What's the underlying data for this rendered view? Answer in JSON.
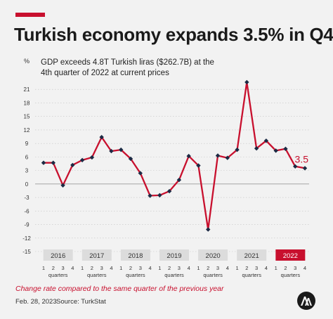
{
  "header": {
    "title": "Turkish economy expands 3.5% in Q4",
    "subtitle": "GDP exceeds 4.8T Turkish liras ($262.7B) at the 4th quarter of 2022 at current prices"
  },
  "caption": "Change rate compared to the same quarter of the previous year",
  "footer": {
    "date": "Feb. 28, 2023",
    "source": "Source: TurkStat"
  },
  "logo": {
    "icon": "aa-logo-icon",
    "text": "AA"
  },
  "colors": {
    "accent": "#c8102e",
    "line": "#c8102e",
    "marker": "#1c2a44",
    "grid": "#c4c4c4",
    "year_band": "#dcdcdc",
    "highlight_year_text": "#ffffff"
  },
  "chart_data": {
    "type": "line",
    "unit_label": "%",
    "ylim": [
      -15,
      24
    ],
    "yticks": [
      21,
      18,
      15,
      12,
      9,
      6,
      3,
      0,
      -3,
      -6,
      -9,
      -12,
      -15
    ],
    "grid": true,
    "years": [
      "2016",
      "2017",
      "2018",
      "2019",
      "2020",
      "2021",
      "2022"
    ],
    "highlight_year": "2022",
    "quarter_labels": [
      "1",
      "2",
      "3",
      "4"
    ],
    "quarters_word": "quarters",
    "series": [
      {
        "values": [
          4.7,
          4.7,
          -0.3,
          4.2,
          5.3,
          5.9,
          10.4,
          7.3,
          7.6,
          5.6,
          2.4,
          -2.6,
          -2.5,
          -1.6,
          0.9,
          6.2,
          4.1,
          -10.1,
          6.3,
          5.8,
          7.6,
          22.6,
          7.9,
          9.6,
          7.4,
          7.8,
          3.9,
          3.5
        ]
      }
    ],
    "end_label": "3.5"
  }
}
